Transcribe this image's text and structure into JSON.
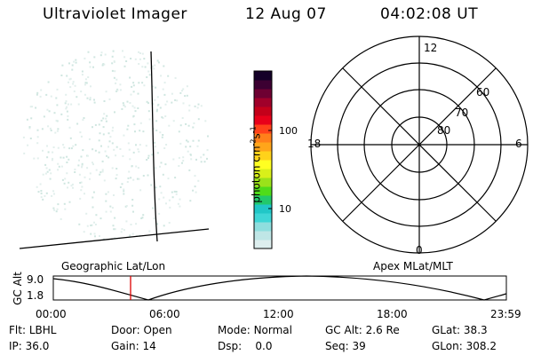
{
  "header": {
    "instrument": "Ultraviolet Imager",
    "date": "12 Aug 07",
    "time": "04:02:08 UT"
  },
  "colorbar": {
    "label": "photon cm",
    "unit_exp1": "-2",
    "unit_mid": "s",
    "unit_exp2": "-1",
    "ticks": [
      "100",
      "10"
    ],
    "scale": "log",
    "colors": [
      "#ddeeee",
      "#bfe6e6",
      "#8fdede",
      "#3fd6d6",
      "#21c7c7",
      "#22c96b",
      "#4fdc1a",
      "#9be21a",
      "#d9f01a",
      "#ffff22",
      "#ffd21a",
      "#ffa51a",
      "#ff801a",
      "#ff421a",
      "#e8001a",
      "#c4001a",
      "#a0002a",
      "#6e0032",
      "#3c0032",
      "#140028"
    ]
  },
  "labels": {
    "geographic": "Geographic Lat/Lon",
    "apex": "Apex  MLat/MLT"
  },
  "polar": {
    "mlt_labels": {
      "top": "12",
      "left": "18",
      "right": "6",
      "bottom": "0"
    },
    "lat_labels": [
      "60",
      "70",
      "80"
    ]
  },
  "altitude_plot": {
    "ylabel": "GC Alt",
    "yticks": [
      "9.0",
      "1.8"
    ],
    "xticks": [
      "00:00",
      "06:00",
      "12:00",
      "18:00",
      "23:59"
    ],
    "current_time_marker": "04:02",
    "marker_color": "#dd0000"
  },
  "status": {
    "row1": [
      {
        "label": "Flt:",
        "value": "LBHL"
      },
      {
        "label": "Door:",
        "value": "Open"
      },
      {
        "label": "Mode:",
        "value": "Normal"
      },
      {
        "label": "GC Alt:",
        "value": "2.6 Re"
      },
      {
        "label": "GLat:",
        "value": "38.3"
      }
    ],
    "row2": [
      {
        "label": "IP:",
        "value": "36.0"
      },
      {
        "label": "Gain:",
        "value": "14"
      },
      {
        "label": "Dsp:",
        "value": "0.0"
      },
      {
        "label": "Seq:",
        "value": "39"
      },
      {
        "label": "GLon:",
        "value": "308.2"
      }
    ]
  }
}
